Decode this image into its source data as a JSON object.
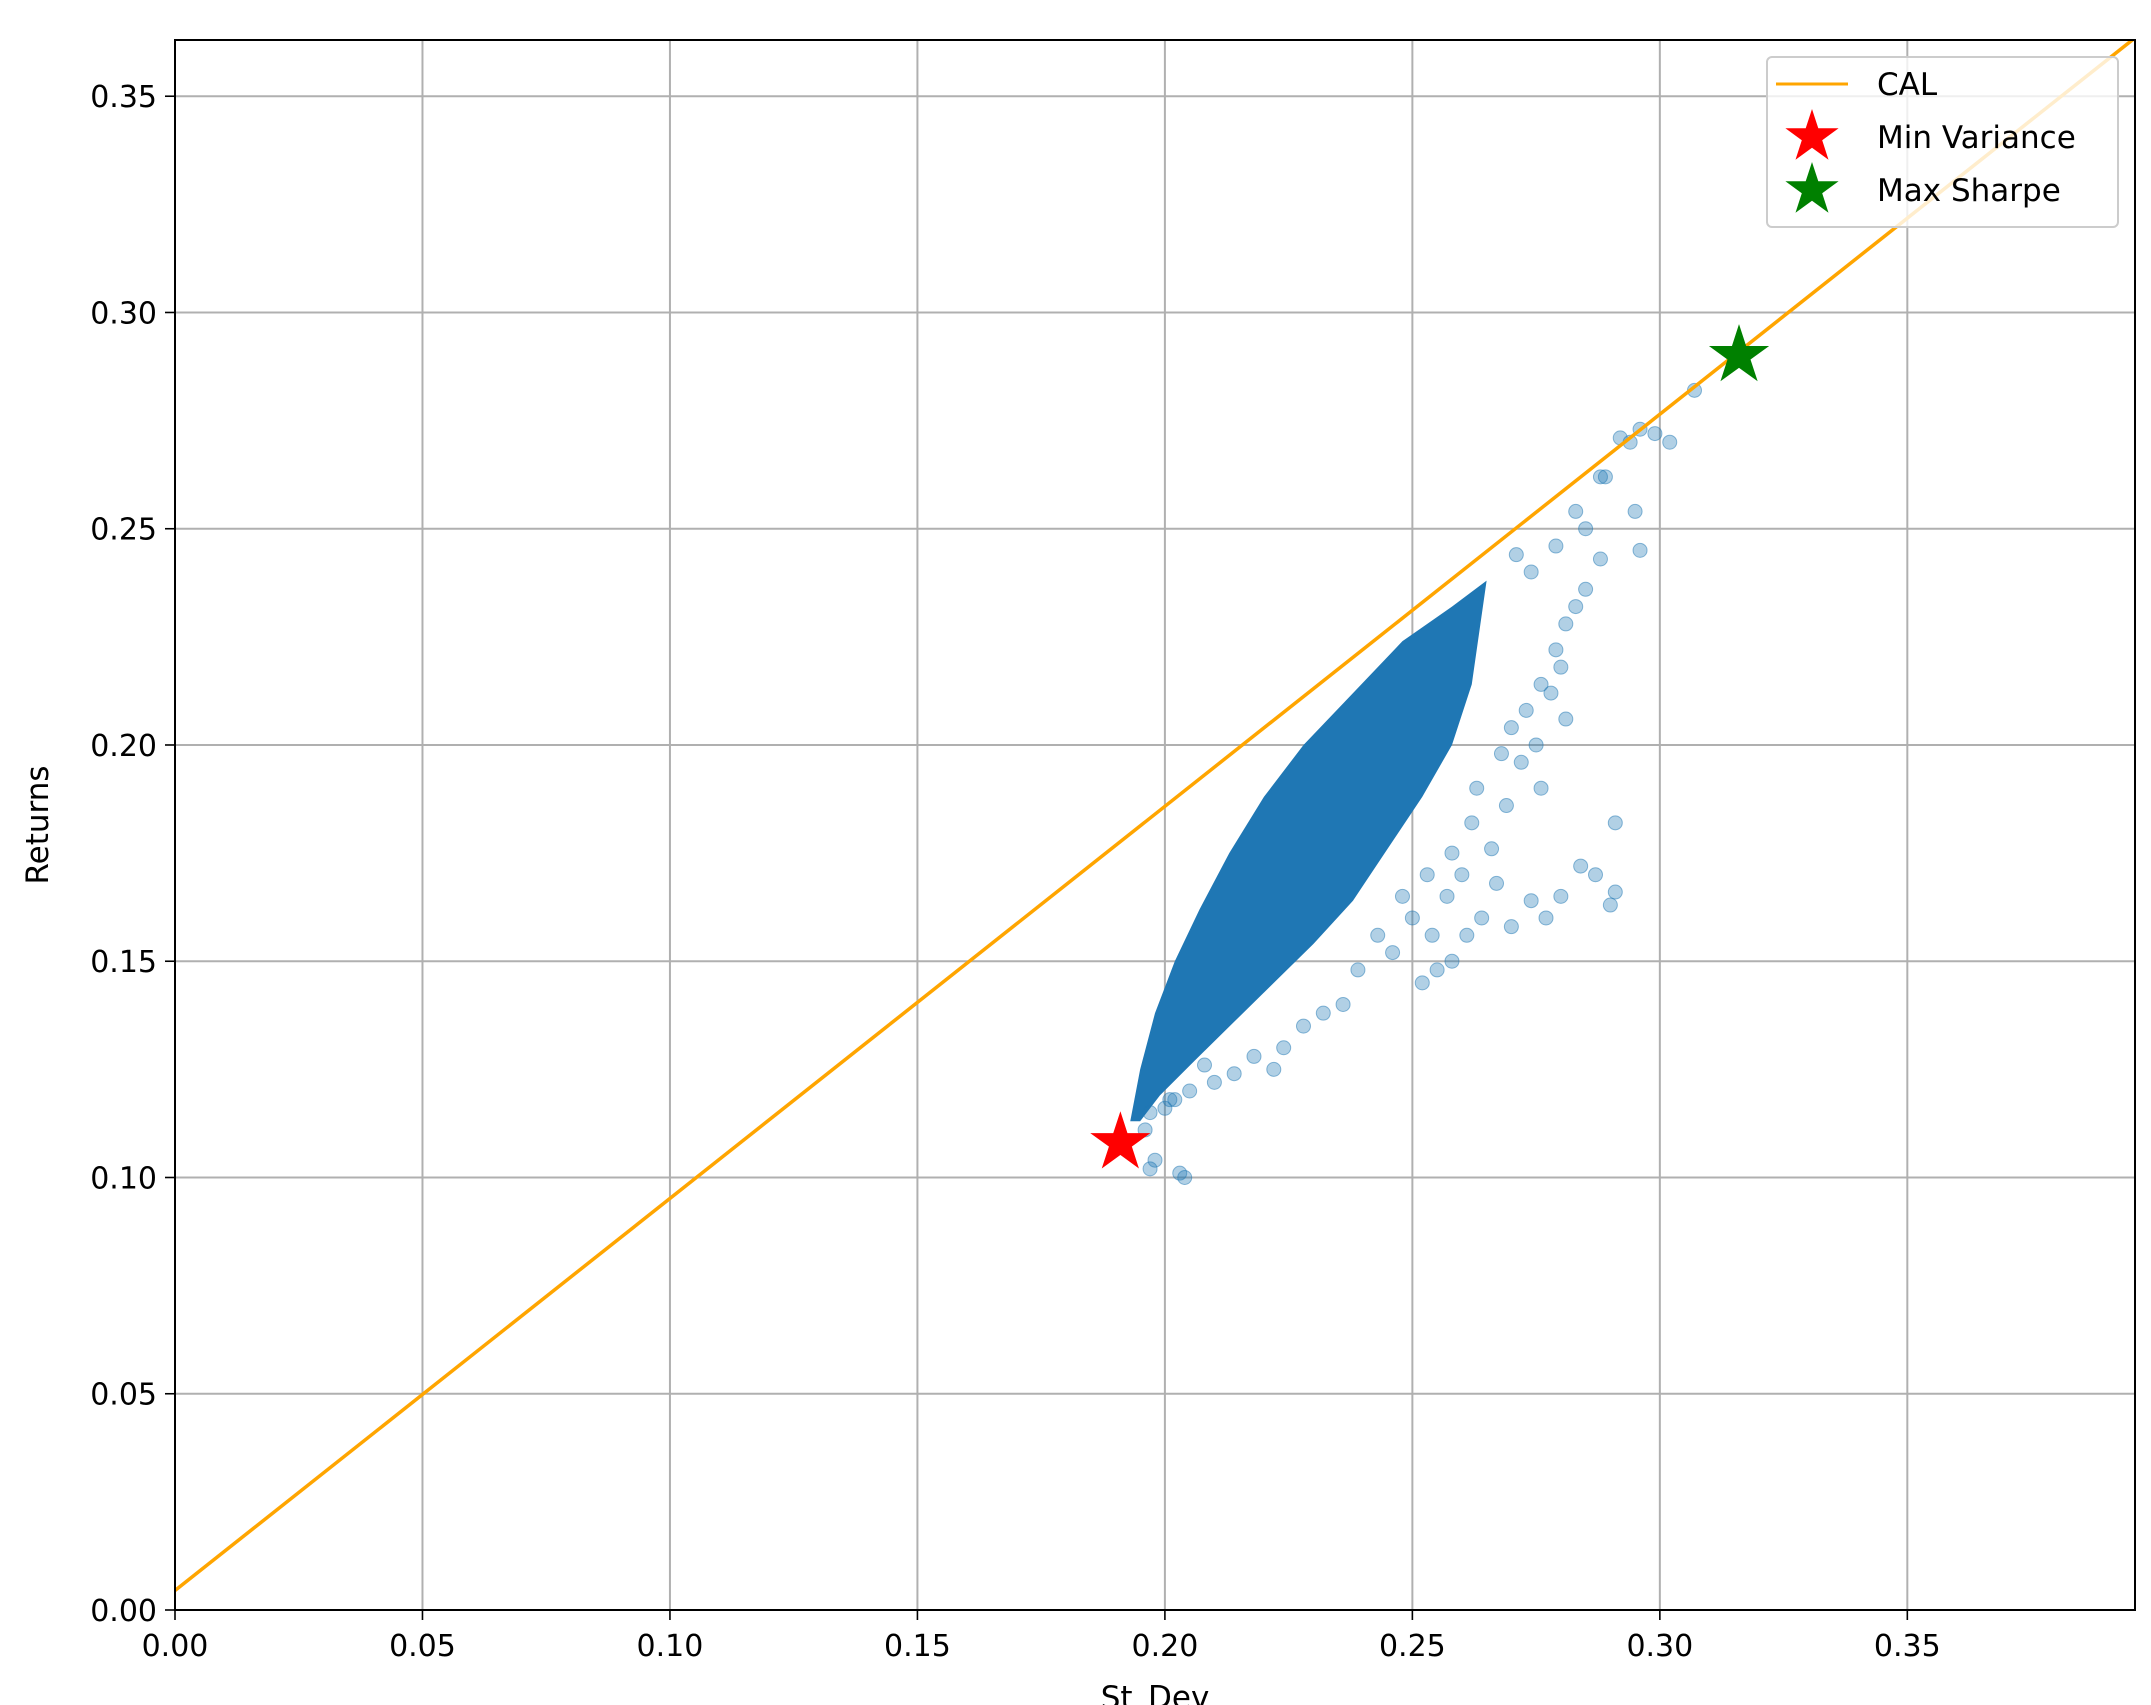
{
  "chart_data": {
    "type": "scatter",
    "title": "",
    "xlabel": "St_Dev",
    "ylabel": "Returns",
    "xlim": [
      0.0,
      0.396
    ],
    "ylim": [
      0.0,
      0.363
    ],
    "xticks": [
      "0.00",
      "0.05",
      "0.10",
      "0.15",
      "0.20",
      "0.25",
      "0.30",
      "0.35"
    ],
    "yticks": [
      "0.00",
      "0.05",
      "0.10",
      "0.15",
      "0.20",
      "0.25",
      "0.30",
      "0.35"
    ],
    "grid": true,
    "legend_position": "top-right",
    "colors": {
      "portfolios": "#1f77b4",
      "cal": "#ffa500",
      "min_variance": "#ff0000",
      "max_sharpe": "#008000"
    },
    "series": [
      {
        "name": "CAL",
        "kind": "line",
        "x": [
          0.0,
          0.396
        ],
        "y": [
          0.0045,
          0.3635
        ]
      },
      {
        "name": "Min Variance",
        "kind": "star-marker",
        "x": [
          0.191
        ],
        "y": [
          0.108
        ]
      },
      {
        "name": "Max Sharpe",
        "kind": "star-marker",
        "x": [
          0.316
        ],
        "y": [
          0.29
        ]
      }
    ],
    "portfolio_cloud": {
      "frontier": [
        [
          0.193,
          0.113
        ],
        [
          0.195,
          0.125
        ],
        [
          0.198,
          0.138
        ],
        [
          0.202,
          0.15
        ],
        [
          0.207,
          0.162
        ],
        [
          0.213,
          0.175
        ],
        [
          0.22,
          0.188
        ],
        [
          0.228,
          0.2
        ],
        [
          0.238,
          0.212
        ],
        [
          0.248,
          0.224
        ],
        [
          0.258,
          0.232
        ],
        [
          0.265,
          0.238
        ]
      ],
      "lower_edge": [
        [
          0.262,
          0.214
        ],
        [
          0.258,
          0.2
        ],
        [
          0.252,
          0.188
        ],
        [
          0.245,
          0.176
        ],
        [
          0.238,
          0.164
        ],
        [
          0.23,
          0.154
        ],
        [
          0.222,
          0.145
        ],
        [
          0.214,
          0.136
        ],
        [
          0.206,
          0.127
        ],
        [
          0.199,
          0.119
        ],
        [
          0.195,
          0.113
        ]
      ],
      "points": [
        [
          0.296,
          0.245
        ],
        [
          0.295,
          0.254
        ],
        [
          0.289,
          0.262
        ],
        [
          0.288,
          0.243
        ],
        [
          0.285,
          0.25
        ],
        [
          0.283,
          0.232
        ],
        [
          0.281,
          0.228
        ],
        [
          0.279,
          0.222
        ],
        [
          0.276,
          0.214
        ],
        [
          0.273,
          0.208
        ],
        [
          0.27,
          0.204
        ],
        [
          0.268,
          0.198
        ],
        [
          0.272,
          0.196
        ],
        [
          0.275,
          0.2
        ],
        [
          0.278,
          0.212
        ],
        [
          0.28,
          0.218
        ],
        [
          0.291,
          0.166
        ],
        [
          0.29,
          0.163
        ],
        [
          0.291,
          0.182
        ],
        [
          0.287,
          0.17
        ],
        [
          0.284,
          0.172
        ],
        [
          0.28,
          0.165
        ],
        [
          0.277,
          0.16
        ],
        [
          0.274,
          0.164
        ],
        [
          0.27,
          0.158
        ],
        [
          0.267,
          0.168
        ],
        [
          0.264,
          0.16
        ],
        [
          0.261,
          0.156
        ],
        [
          0.258,
          0.15
        ],
        [
          0.255,
          0.148
        ],
        [
          0.252,
          0.145
        ],
        [
          0.266,
          0.176
        ],
        [
          0.262,
          0.182
        ],
        [
          0.258,
          0.175
        ],
        [
          0.281,
          0.206
        ],
        [
          0.276,
          0.19
        ],
        [
          0.269,
          0.186
        ],
        [
          0.263,
          0.19
        ],
        [
          0.283,
          0.254
        ],
        [
          0.279,
          0.246
        ],
        [
          0.274,
          0.24
        ],
        [
          0.271,
          0.244
        ],
        [
          0.292,
          0.271
        ],
        [
          0.294,
          0.27
        ],
        [
          0.296,
          0.273
        ],
        [
          0.299,
          0.272
        ],
        [
          0.288,
          0.262
        ],
        [
          0.285,
          0.236
        ],
        [
          0.239,
          0.148
        ],
        [
          0.236,
          0.14
        ],
        [
          0.232,
          0.138
        ],
        [
          0.228,
          0.135
        ],
        [
          0.224,
          0.13
        ],
        [
          0.222,
          0.125
        ],
        [
          0.218,
          0.128
        ],
        [
          0.214,
          0.124
        ],
        [
          0.21,
          0.122
        ],
        [
          0.205,
          0.12
        ],
        [
          0.202,
          0.118
        ],
        [
          0.2,
          0.116
        ],
        [
          0.197,
          0.115
        ],
        [
          0.196,
          0.111
        ],
        [
          0.198,
          0.104
        ],
        [
          0.197,
          0.102
        ],
        [
          0.203,
          0.101
        ],
        [
          0.204,
          0.1
        ],
        [
          0.201,
          0.118
        ],
        [
          0.208,
          0.126
        ],
        [
          0.246,
          0.152
        ],
        [
          0.243,
          0.156
        ],
        [
          0.25,
          0.16
        ],
        [
          0.254,
          0.156
        ],
        [
          0.257,
          0.165
        ],
        [
          0.26,
          0.17
        ],
        [
          0.253,
          0.17
        ],
        [
          0.248,
          0.165
        ],
        [
          0.307,
          0.282
        ],
        [
          0.302,
          0.27
        ]
      ]
    }
  },
  "legend": {
    "items": [
      {
        "label": "CAL",
        "marker": "line",
        "color": "#ffa500"
      },
      {
        "label": "Min Variance",
        "marker": "star",
        "color": "#ff0000"
      },
      {
        "label": "Max Sharpe",
        "marker": "star",
        "color": "#008000"
      }
    ]
  }
}
